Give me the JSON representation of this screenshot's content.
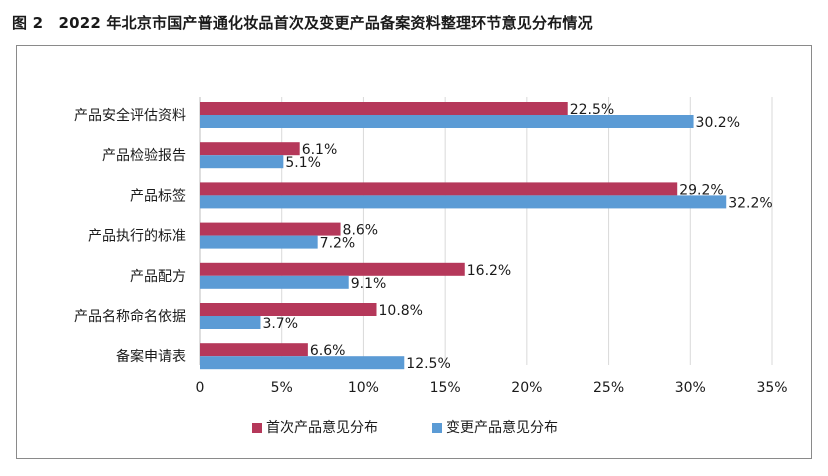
{
  "figure": {
    "title": "图 2　2022 年北京市国产普通化妆品首次及变更产品备案资料整理环节意见分布情况"
  },
  "chart_data": {
    "type": "bar",
    "orientation": "horizontal",
    "categories": [
      "产品安全评估资料",
      "产品检验报告",
      "产品标签",
      "产品执行的标准",
      "产品配方",
      "产品名称命名依据",
      "备案申请表"
    ],
    "series": [
      {
        "name": "首次产品意见分布",
        "color": "#b5385a",
        "values": [
          22.5,
          6.1,
          29.2,
          8.6,
          16.2,
          10.8,
          6.6
        ],
        "labels": [
          "22.5%",
          "6.1%",
          "29.2%",
          "8.6%",
          "16.2%",
          "10.8%",
          "6.6%"
        ]
      },
      {
        "name": "变更产品意见分布",
        "color": "#5b9bd5",
        "values": [
          30.2,
          5.1,
          32.2,
          7.2,
          9.1,
          3.7,
          12.5
        ],
        "labels": [
          "30.2%",
          "5.1%",
          "32.2%",
          "7.2%",
          "9.1%",
          "3.7%",
          "12.5%"
        ]
      }
    ],
    "xlim": [
      0,
      35
    ],
    "xticks": [
      0,
      5,
      10,
      15,
      20,
      25,
      30,
      35
    ],
    "xtick_labels": [
      "0",
      "5%",
      "10%",
      "15%",
      "20%",
      "25%",
      "30%",
      "35%"
    ],
    "grid": "vertical",
    "legend_position": "bottom"
  }
}
